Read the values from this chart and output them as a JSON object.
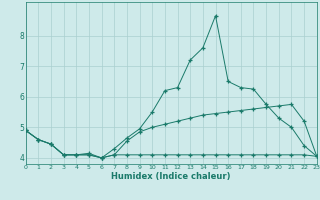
{
  "xlabel": "Humidex (Indice chaleur)",
  "x": [
    0,
    1,
    2,
    3,
    4,
    5,
    6,
    7,
    8,
    9,
    10,
    11,
    12,
    13,
    14,
    15,
    16,
    17,
    18,
    19,
    20,
    21,
    22,
    23
  ],
  "line1": [
    4.9,
    4.6,
    4.45,
    4.1,
    4.1,
    4.15,
    4.0,
    4.3,
    4.65,
    4.95,
    5.5,
    6.2,
    6.3,
    7.2,
    7.6,
    8.65,
    6.5,
    6.3,
    6.25,
    5.75,
    5.3,
    5.0,
    4.4,
    4.05
  ],
  "line2": [
    4.9,
    4.6,
    4.45,
    4.1,
    4.1,
    4.1,
    4.0,
    4.1,
    4.55,
    4.85,
    5.0,
    5.1,
    5.2,
    5.3,
    5.4,
    5.45,
    5.5,
    5.55,
    5.6,
    5.65,
    5.7,
    5.75,
    5.2,
    4.05
  ],
  "line3": [
    4.9,
    4.6,
    4.45,
    4.1,
    4.1,
    4.1,
    4.0,
    4.1,
    4.1,
    4.1,
    4.1,
    4.1,
    4.1,
    4.1,
    4.1,
    4.1,
    4.1,
    4.1,
    4.1,
    4.1,
    4.1,
    4.1,
    4.1,
    4.05
  ],
  "line_color": "#1a7a6a",
  "bg_color": "#ceeaea",
  "grid_color": "#aacfcf",
  "ylim": [
    3.8,
    9.1
  ],
  "xlim": [
    0,
    23
  ]
}
